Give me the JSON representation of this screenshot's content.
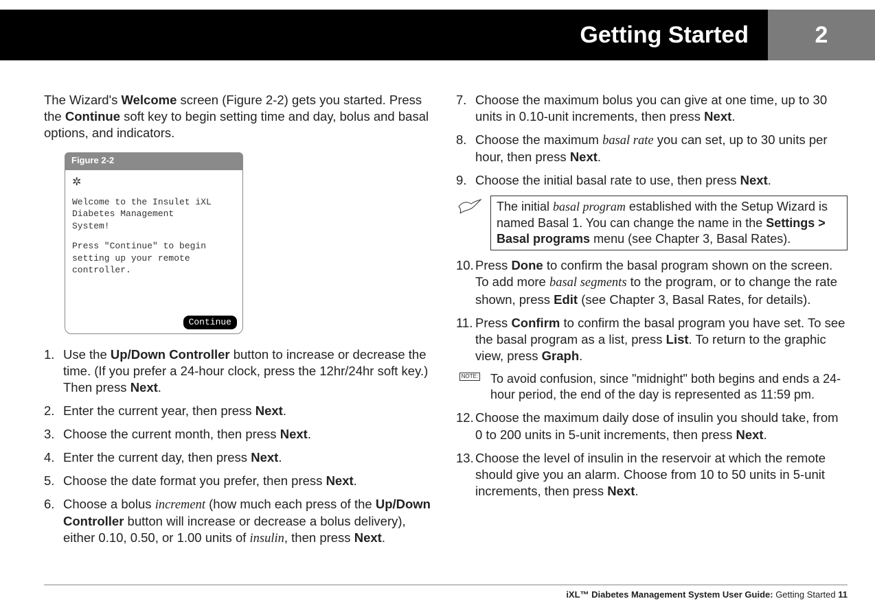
{
  "header": {
    "title": "Getting Started",
    "chapter_number": "2"
  },
  "intro": {
    "text_parts": [
      "The Wizard's ",
      "Welcome",
      " screen (Figure 2-2) gets you started. Press the ",
      "Continue",
      " soft key to begin setting time and day, bolus and basal options, and indicators."
    ]
  },
  "figure": {
    "label": "Figure 2-2",
    "icon_glyph": "✲",
    "line1": "Welcome to the Insulet iXL",
    "line2": "Diabetes Management",
    "line3": "System!",
    "line4": "Press \"Continue\" to begin",
    "line5": "setting up your remote",
    "line6": "controller.",
    "button_label": "Continue"
  },
  "steps_left": [
    {
      "n": "1.",
      "html": "Use the <b>Up/Down Controller</b> button to increase or decrease the time. (If you prefer a 24-hour clock, press the 12hr/24hr soft key.) Then press <b>Next</b>."
    },
    {
      "n": "2.",
      "html": "Enter the current year, then press <b>Next</b>."
    },
    {
      "n": "3.",
      "html": "Choose the current month, then press <b>Next</b>."
    },
    {
      "n": "4.",
      "html": "Enter the current day, then press <b>Next</b>."
    },
    {
      "n": "5.",
      "html": "Choose the date format you prefer, then press <b>Next</b>."
    },
    {
      "n": "6.",
      "html": "Choose a bolus <i class='term'>increment</i> (how much each press of the <b>Up/Down Controller</b> button will increase or decrease a bolus delivery), either 0.10, 0.50, or 1.00 units of <i class='term'>insulin</i>, then press <b>Next</b>."
    }
  ],
  "steps_right_a": [
    {
      "n": "7.",
      "html": "Choose the maximum bolus you can give at one time, up to 30 units in 0.10-unit increments, then press <b>Next</b>."
    },
    {
      "n": "8.",
      "html": "Choose the maximum <i class='term'>basal rate</i> you can set, up to 30 units per hour, then press <b>Next</b>."
    },
    {
      "n": "9.",
      "html": "Choose the initial basal rate to use, then press <b>Next</b>."
    }
  ],
  "callout_bird": {
    "html": "The initial <i class='term'>basal program</i> established with the Setup Wizard is named Basal 1. You can change the name in the <b>Settings &gt; Basal programs</b> menu (see Chapter 3, Basal Rates)."
  },
  "steps_right_b": [
    {
      "n": "10.",
      "html": "Press <b>Done</b> to confirm the basal program shown on the screen. To add more <i class='term'>basal segments</i> to the program, or to change the rate shown, press <b>Edit</b> (see Chapter 3, Basal Rates, for details)."
    },
    {
      "n": "11.",
      "html": "Press <b>Confirm</b> to confirm the basal program you have set. To see the basal program as a list, press <b>List</b>. To return to the graphic view, press <b>Graph</b>."
    }
  ],
  "callout_note": {
    "icon_text": "NOTE:",
    "html": "To avoid confusion, since \"midnight\" both begins and ends a 24-hour period, the end of the day is represented as 11:59 pm."
  },
  "steps_right_c": [
    {
      "n": "12.",
      "html": "Choose the maximum daily dose of insulin you should take, from 0 to 200 units in 5-unit increments, then press <b>Next</b>."
    },
    {
      "n": "13.",
      "html": "Choose the level of insulin in the reservoir at which the remote should give you an alarm. Choose from 10 to 50 units in 5-unit increments, then press <b>Next</b>."
    }
  ],
  "footer": {
    "product": "iXL™ Diabetes Management System User Guide:",
    "section": " Getting Started   ",
    "page": "11"
  },
  "colors": {
    "header_bg": "#000000",
    "tab_bg": "#7b7b7b",
    "fig_label_bg": "#8a8a8a",
    "text": "#222222",
    "rule": "#888888"
  }
}
